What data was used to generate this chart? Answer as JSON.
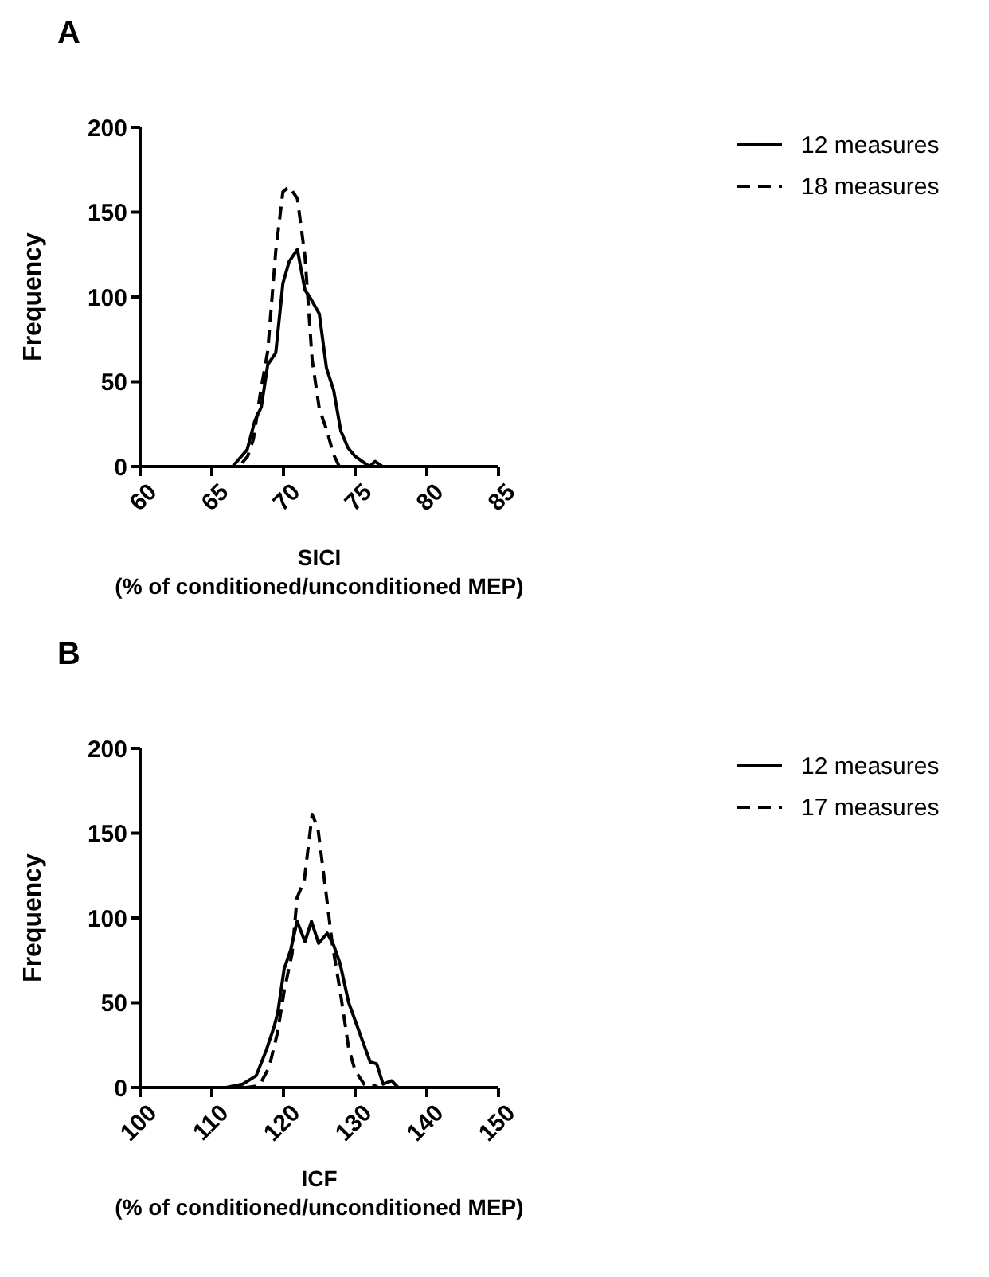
{
  "chart_data": [
    {
      "type": "line",
      "title": "A",
      "xlabel": "SICI\n(% of conditioned/unconditioned MEP)",
      "ylabel": "Frequency",
      "xlim": [
        60,
        85
      ],
      "xticks": [
        60,
        65,
        70,
        75,
        80,
        85
      ],
      "ylim": [
        0,
        200
      ],
      "yticks": [
        0,
        50,
        100,
        150,
        200
      ],
      "legend": "top right",
      "series": [
        {
          "name": "12 measures",
          "color": "#000000",
          "line_style": "solid",
          "x": [
            60,
            66.45,
            67.47,
            68.0,
            68.45,
            68.9,
            69.46,
            69.96,
            70.4,
            70.97,
            71.5,
            71.9,
            72.5,
            73.0,
            73.5,
            74.0,
            74.5,
            75.0,
            76.0,
            76.4,
            76.9,
            85
          ],
          "values": [
            0,
            0,
            10,
            27,
            35,
            60,
            67,
            108,
            121,
            128,
            104,
            99,
            90,
            58,
            45,
            21,
            11,
            6,
            0,
            3,
            0,
            0
          ]
        },
        {
          "name": "18 measures",
          "color": "#000000",
          "line_style": "dashed",
          "x": [
            60,
            66.9,
            67.5,
            67.9,
            68.4,
            68.9,
            69.46,
            69.96,
            70.4,
            70.97,
            71.5,
            72.0,
            72.5,
            73.0,
            73.5,
            73.9,
            85
          ],
          "values": [
            0,
            0,
            6,
            16,
            44,
            68,
            127,
            162,
            165,
            158,
            124,
            63,
            34,
            22,
            7,
            0,
            0
          ]
        }
      ]
    },
    {
      "type": "line",
      "title": "B",
      "xlabel": "ICF\n(% of conditioned/unconditioned MEP)",
      "ylabel": "Frequency",
      "xlim": [
        100,
        150
      ],
      "xticks": [
        100,
        110,
        120,
        130,
        140,
        150
      ],
      "ylim": [
        0,
        200
      ],
      "yticks": [
        0,
        50,
        100,
        150,
        200
      ],
      "legend": "top right",
      "series": [
        {
          "name": "12 measures",
          "color": "#000000",
          "line_style": "solid",
          "x": [
            100,
            112.0,
            114.3,
            116.2,
            117.6,
            118.7,
            119.2,
            120.1,
            121.0,
            121.9,
            123.0,
            123.9,
            124.9,
            126.1,
            127.0,
            127.9,
            129.1,
            130.9,
            132.1,
            133.0,
            133.9,
            135.1,
            136.0,
            150
          ],
          "values": [
            0,
            0,
            2,
            7,
            22,
            36,
            44,
            70,
            81,
            98,
            86,
            98,
            85,
            91,
            84,
            73,
            50,
            29,
            15,
            14,
            2,
            4,
            0,
            0
          ]
        },
        {
          "name": "17 measures",
          "color": "#000000",
          "line_style": "dashed",
          "x": [
            100,
            114.8,
            116.6,
            118.0,
            119.2,
            120.1,
            121.2,
            121.9,
            122.9,
            124.0,
            124.8,
            125.9,
            126.8,
            127.9,
            129.1,
            130.0,
            131.4,
            132.8,
            133.2,
            150
          ],
          "values": [
            0,
            0,
            1,
            12,
            33,
            57,
            79,
            112,
            122,
            161,
            153,
            116,
            85,
            57,
            23,
            10,
            1,
            1,
            0,
            0
          ]
        }
      ]
    }
  ]
}
